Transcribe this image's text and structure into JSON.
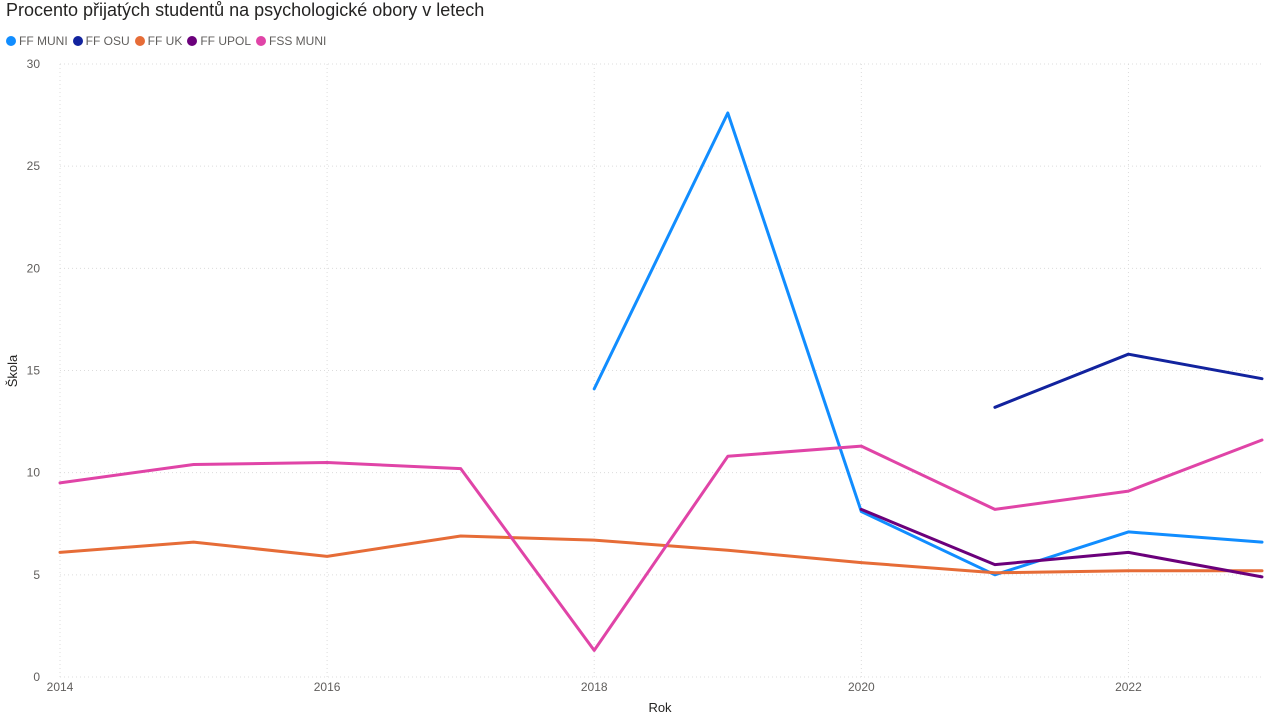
{
  "chart_data": {
    "type": "line",
    "title": "Procento přijatých studentů na psychologické obory v letech",
    "xlabel": "Rok",
    "ylabel": "Škola",
    "xlim": [
      2014,
      2023
    ],
    "ylim": [
      0,
      30
    ],
    "x_ticks": [
      "2014",
      "2016",
      "2018",
      "2020",
      "2022"
    ],
    "y_ticks": [
      "0",
      "5",
      "10",
      "15",
      "20",
      "25",
      "30"
    ],
    "grid": true,
    "legend_position": "top-left",
    "x": [
      2014,
      2015,
      2016,
      2017,
      2018,
      2019,
      2020,
      2021,
      2022,
      2023
    ],
    "series": [
      {
        "name": "FF MUNI",
        "color": "#118DFF",
        "values": [
          null,
          null,
          null,
          null,
          14.1,
          27.6,
          8.1,
          5.0,
          7.1,
          6.6
        ]
      },
      {
        "name": "FF OSU",
        "color": "#12239E",
        "values": [
          null,
          null,
          null,
          null,
          null,
          null,
          null,
          13.2,
          15.8,
          14.6
        ]
      },
      {
        "name": "FF UK",
        "color": "#E66C37",
        "values": [
          6.1,
          6.6,
          5.9,
          6.9,
          6.7,
          6.2,
          5.6,
          5.1,
          5.2,
          5.2
        ]
      },
      {
        "name": "FF UPOL",
        "color": "#6B007B",
        "values": [
          null,
          null,
          null,
          null,
          null,
          null,
          8.2,
          5.5,
          6.1,
          4.9
        ]
      },
      {
        "name": "FSS MUNI",
        "color": "#E044A7",
        "values": [
          9.5,
          10.4,
          10.5,
          10.2,
          1.3,
          10.8,
          11.3,
          8.2,
          9.1,
          11.6
        ]
      }
    ]
  }
}
